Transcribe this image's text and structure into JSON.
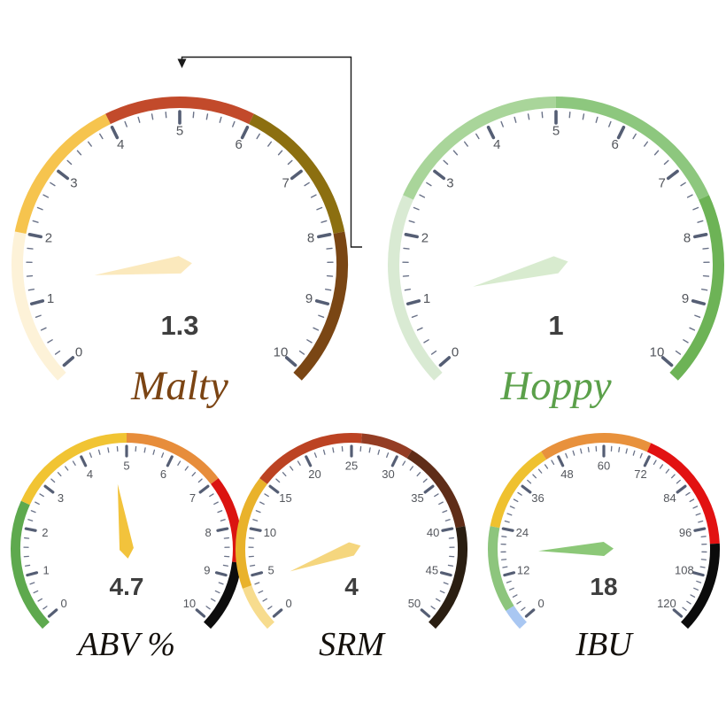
{
  "page": {
    "background": "#ffffff",
    "description": "Beer profile dashboard with five gauge charts"
  },
  "styles": {
    "major_tick_color": "#555e74",
    "minor_tick_color": "#6a7288",
    "tick_label_color": "#53565c",
    "value_color": "#3e3e3e",
    "annotation_color": "#1a1a1a"
  },
  "chart_data": {
    "type": "gauge",
    "gauges": [
      {
        "id": "malty",
        "title": "Malty",
        "title_color": "#7b4413",
        "value": 1.3,
        "value_display": "1.3",
        "min": 0,
        "max": 10,
        "major_step": 1,
        "minor_step": 0.2,
        "tick_labels": [
          "0",
          "1",
          "2",
          "3",
          "4",
          "5",
          "6",
          "7",
          "8",
          "9",
          "10"
        ],
        "needle_color": "#fbe9bd",
        "segments": [
          {
            "from": 0,
            "to": 2,
            "color": "#fdf2d8"
          },
          {
            "from": 2,
            "to": 4,
            "color": "#f6c44e"
          },
          {
            "from": 4,
            "to": 6,
            "color": "#c24a2b"
          },
          {
            "from": 6,
            "to": 8,
            "color": "#8c6f10"
          },
          {
            "from": 8,
            "to": 10,
            "color": "#7a4614"
          }
        ]
      },
      {
        "id": "hoppy",
        "title": "Hoppy",
        "title_color": "#5ba04a",
        "value": 1,
        "value_display": "1",
        "min": 0,
        "max": 10,
        "major_step": 1,
        "minor_step": 0.2,
        "tick_labels": [
          "0",
          "1",
          "2",
          "3",
          "4",
          "5",
          "6",
          "7",
          "8",
          "9",
          "10"
        ],
        "needle_color": "#d8ebcf",
        "segments": [
          {
            "from": 0,
            "to": 2.5,
            "color": "#d9ead3"
          },
          {
            "from": 2.5,
            "to": 5,
            "color": "#a9d59a"
          },
          {
            "from": 5,
            "to": 7.5,
            "color": "#8dc77e"
          },
          {
            "from": 7.5,
            "to": 10,
            "color": "#6db356"
          }
        ]
      },
      {
        "id": "abv",
        "title": "ABV %",
        "title_color": "#14100c",
        "value": 4.7,
        "value_display": "4.7",
        "min": 0,
        "max": 10,
        "major_step": 1,
        "minor_step": 0.2,
        "tick_labels": [
          "0",
          "1",
          "2",
          "3",
          "4",
          "5",
          "6",
          "7",
          "8",
          "9",
          "10"
        ],
        "needle_color": "#f2c33c",
        "segments": [
          {
            "from": 0,
            "to": 2.5,
            "color": "#5ea94e"
          },
          {
            "from": 2.5,
            "to": 5,
            "color": "#f1c433"
          },
          {
            "from": 5,
            "to": 7,
            "color": "#e78d3b"
          },
          {
            "from": 7,
            "to": 8.7,
            "color": "#db1411"
          },
          {
            "from": 8.7,
            "to": 10,
            "color": "#0d0d0d"
          }
        ]
      },
      {
        "id": "srm",
        "title": "SRM",
        "title_color": "#14100c",
        "value": 4,
        "value_display": "4",
        "min": 0,
        "max": 50,
        "major_step": 5,
        "minor_step": 1,
        "tick_labels": [
          "0",
          "5",
          "10",
          "15",
          "20",
          "25",
          "30",
          "35",
          "40",
          "45",
          "50"
        ],
        "needle_color": "#f5d67e",
        "segments": [
          {
            "from": 0,
            "to": 4,
            "color": "#f7dc8e"
          },
          {
            "from": 4,
            "to": 15,
            "color": "#e9b22b"
          },
          {
            "from": 15,
            "to": 26,
            "color": "#bc4323"
          },
          {
            "from": 26,
            "to": 31,
            "color": "#943d24"
          },
          {
            "from": 31,
            "to": 40,
            "color": "#5f2d18"
          },
          {
            "from": 40,
            "to": 50,
            "color": "#2a1e11"
          }
        ]
      },
      {
        "id": "ibu",
        "title": "IBU",
        "title_color": "#14100c",
        "value": 18,
        "value_display": "18",
        "min": 0,
        "max": 120,
        "major_step": 12,
        "minor_step": 2,
        "tick_labels": [
          "0",
          "12",
          "24",
          "36",
          "48",
          "60",
          "72",
          "84",
          "96",
          "108",
          "120"
        ],
        "needle_color": "#8cc878",
        "segments": [
          {
            "from": 0,
            "to": 4,
            "color": "#a9c7f2"
          },
          {
            "from": 4,
            "to": 24,
            "color": "#8dc57d"
          },
          {
            "from": 24,
            "to": 45,
            "color": "#efc12f"
          },
          {
            "from": 45,
            "to": 71,
            "color": "#e8913c"
          },
          {
            "from": 71,
            "to": 100,
            "color": "#e21212"
          },
          {
            "from": 100,
            "to": 120,
            "color": "#0b0b0b"
          }
        ]
      }
    ],
    "annotation": {
      "type": "callout-arrow",
      "color": "#1a1a1a",
      "from": "value 8 on Malty arc",
      "points_to": "top of Malty gauge"
    }
  }
}
